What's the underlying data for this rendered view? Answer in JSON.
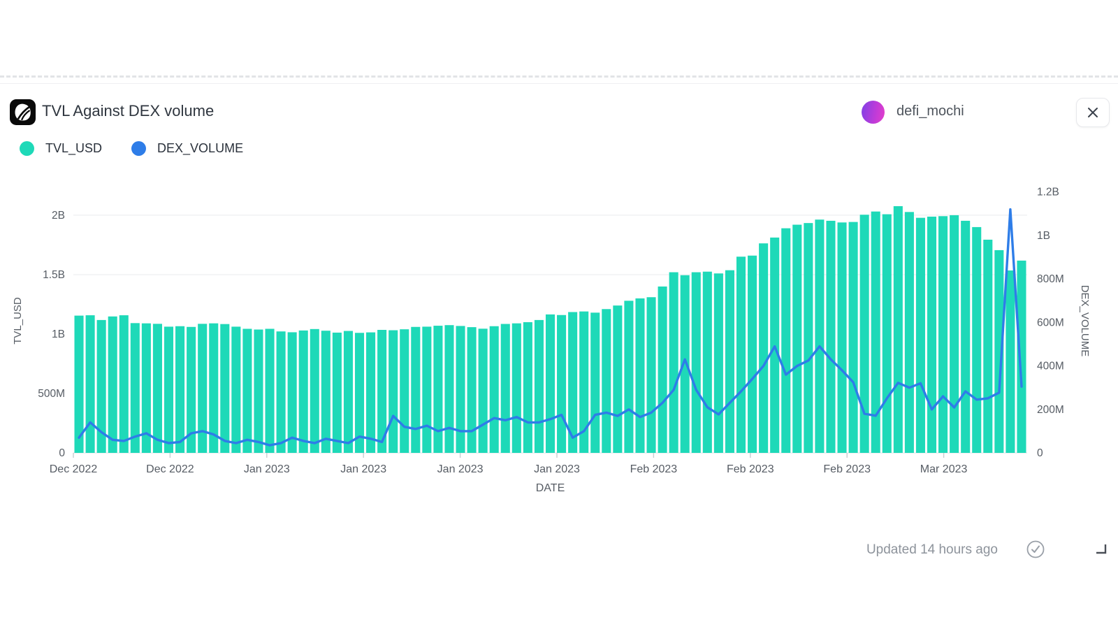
{
  "header": {
    "title": "TVL Against DEX volume",
    "user": "defi_mochi"
  },
  "legend": [
    {
      "label": "TVL_USD",
      "color": "#1ed9b8"
    },
    {
      "label": "DEX_VOLUME",
      "color": "#2e7de8"
    }
  ],
  "footer": {
    "updated": "Updated 14 hours ago"
  },
  "colors": {
    "bar": "#1ed9b8",
    "line": "#2e7de8",
    "grid": "#e9ebee",
    "baseline": "#dfe2e6",
    "axis_text": "#565c64",
    "tick_mark": "#c8ccd1"
  },
  "chart_data": {
    "type": "bar+line",
    "title": "TVL Against DEX volume",
    "xlabel": "DATE",
    "x_tick_labels": [
      "Dec 2022",
      "Dec 2022",
      "Jan 2023",
      "Jan 2023",
      "Jan 2023",
      "Jan 2023",
      "Feb 2023",
      "Feb 2023",
      "Feb 2023",
      "Mar 2023"
    ],
    "legend_position": "top-left",
    "grid": "horizontal-sparse",
    "left_axis": {
      "label": "TVL_USD",
      "max_millions": 2223,
      "ticks": [
        {
          "v": 0,
          "label": "0",
          "grid": false
        },
        {
          "v": 500,
          "label": "500M",
          "grid": false
        },
        {
          "v": 1000,
          "label": "1B",
          "grid": false
        },
        {
          "v": 1500,
          "label": "1.5B",
          "grid": true
        },
        {
          "v": 2000,
          "label": "2B",
          "grid": true
        }
      ]
    },
    "right_axis": {
      "label": "DEX_VOLUME",
      "max_millions": 1215,
      "ticks": [
        {
          "v": 0,
          "label": "0"
        },
        {
          "v": 200,
          "label": "200M"
        },
        {
          "v": 400,
          "label": "400M"
        },
        {
          "v": 600,
          "label": "600M"
        },
        {
          "v": 800,
          "label": "800M"
        },
        {
          "v": 1000,
          "label": "1B"
        },
        {
          "v": 1200,
          "label": "1.2B"
        }
      ]
    },
    "series": [
      {
        "name": "TVL_USD",
        "type": "bar",
        "axis": "left",
        "color": "#1ed9b8",
        "values_millions": [
          1155,
          1158,
          1118,
          1148,
          1158,
          1092,
          1090,
          1086,
          1062,
          1066,
          1060,
          1086,
          1090,
          1084,
          1062,
          1044,
          1038,
          1044,
          1022,
          1015,
          1030,
          1042,
          1028,
          1012,
          1026,
          1010,
          1014,
          1035,
          1032,
          1040,
          1060,
          1062,
          1070,
          1075,
          1068,
          1058,
          1045,
          1066,
          1085,
          1090,
          1100,
          1118,
          1165,
          1160,
          1185,
          1190,
          1180,
          1210,
          1240,
          1280,
          1300,
          1310,
          1400,
          1520,
          1495,
          1520,
          1525,
          1510,
          1537,
          1651,
          1660,
          1763,
          1812,
          1890,
          1920,
          1934,
          1963,
          1953,
          1939,
          1943,
          2004,
          2031,
          2008,
          2076,
          2027,
          1978,
          1988,
          1992,
          2000,
          1953,
          1900,
          1794,
          1706,
          1535,
          1618
        ]
      },
      {
        "name": "DEX_VOLUME",
        "type": "line",
        "axis": "right",
        "color": "#2e7de8",
        "values_millions": [
          70,
          140,
          95,
          60,
          55,
          75,
          90,
          60,
          45,
          50,
          90,
          100,
          85,
          55,
          45,
          60,
          50,
          35,
          45,
          70,
          55,
          45,
          65,
          55,
          45,
          75,
          65,
          50,
          170,
          120,
          110,
          125,
          100,
          115,
          100,
          100,
          130,
          160,
          150,
          165,
          140,
          140,
          155,
          175,
          70,
          100,
          175,
          185,
          170,
          200,
          165,
          185,
          230,
          290,
          430,
          290,
          210,
          177,
          230,
          283,
          340,
          400,
          490,
          360,
          400,
          425,
          490,
          430,
          380,
          325,
          180,
          171,
          251,
          322,
          300,
          320,
          200,
          260,
          209,
          283,
          245,
          251,
          277,
          1120,
          305
        ]
      }
    ]
  }
}
